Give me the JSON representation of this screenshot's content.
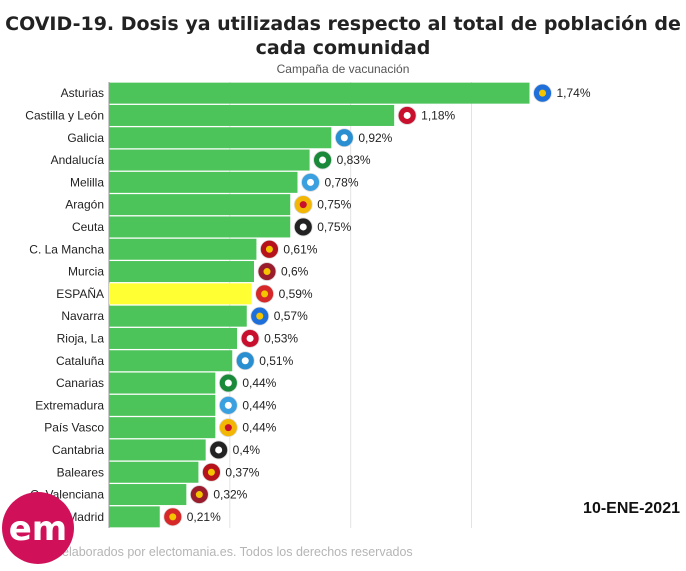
{
  "header": {
    "title": "COVID-19. Dosis ya utilizadas respecto al total de población de cada comunidad",
    "subtitle": "Campaña de vacunación"
  },
  "date_label": "10-ENE-2021",
  "footer": "Gráficos elaborados por electomania.es. Todos los derechos reservados",
  "logo_text": "em",
  "colors": {
    "bar": "#4cc459",
    "highlight": "#ffff33",
    "grid": "#e3e3e3"
  },
  "chart_data": {
    "type": "bar",
    "orientation": "horizontal",
    "categories": [
      "Asturias",
      "Castilla y León",
      "Galicia",
      "Andalucía",
      "Melilla",
      "Aragón",
      "Ceuta",
      "C. La Mancha",
      "Murcia",
      "ESPAÑA",
      "Navarra",
      "Rioja, La",
      "Cataluña",
      "Canarias",
      "Extremadura",
      "País Vasco",
      "Cantabria",
      "Baleares",
      "C. Valenciana",
      "Madrid"
    ],
    "values": [
      1.74,
      1.18,
      0.92,
      0.83,
      0.78,
      0.75,
      0.75,
      0.61,
      0.6,
      0.59,
      0.57,
      0.53,
      0.51,
      0.44,
      0.44,
      0.44,
      0.4,
      0.37,
      0.32,
      0.21
    ],
    "value_labels": [
      "1,74%",
      "1,18%",
      "0,92%",
      "0,83%",
      "0,78%",
      "0,75%",
      "0,75%",
      "0,61%",
      "0,6%",
      "0,59%",
      "0,57%",
      "0,53%",
      "0,51%",
      "0,44%",
      "0,44%",
      "0,44%",
      "0,4%",
      "0,37%",
      "0,32%",
      "0,21%"
    ],
    "highlight": "ESPAÑA",
    "xlim": [
      0,
      1.8
    ],
    "grid": true,
    "flag_icons": [
      "asturias-flag-icon",
      "castilla-leon-flag-icon",
      "galicia-flag-icon",
      "andalucia-flag-icon",
      "melilla-flag-icon",
      "aragon-flag-icon",
      "ceuta-flag-icon",
      "castilla-la-mancha-flag-icon",
      "murcia-flag-icon",
      "spain-flag-icon",
      "navarra-flag-icon",
      "la-rioja-flag-icon",
      "cataluna-flag-icon",
      "canarias-flag-icon",
      "extremadura-flag-icon",
      "pais-vasco-flag-icon",
      "cantabria-flag-icon",
      "baleares-flag-icon",
      "valenciana-flag-icon",
      "madrid-flag-icon"
    ]
  }
}
